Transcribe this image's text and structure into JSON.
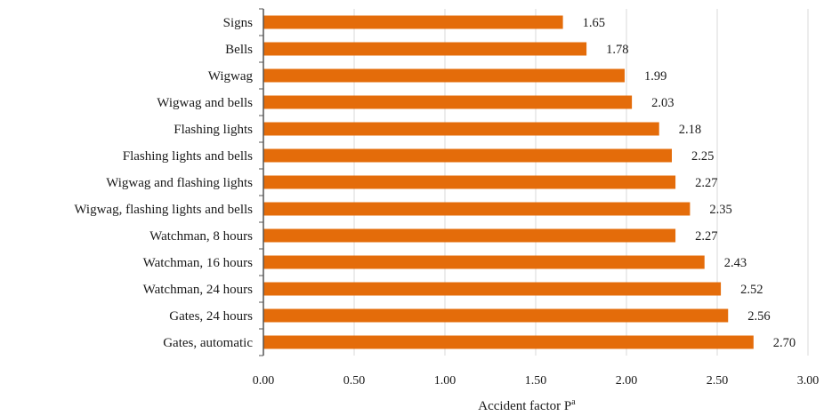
{
  "chart_data": {
    "type": "bar",
    "orientation": "horizontal",
    "categories": [
      "Signs",
      "Bells",
      "Wigwag",
      "Wigwag and bells",
      "Flashing lights",
      "Flashing lights and bells",
      "Wigwag and flashing lights",
      "Wigwag, flashing lights and bells",
      "Watchman, 8 hours",
      "Watchman, 16 hours",
      "Watchman, 24 hours",
      "Gates, 24 hours",
      "Gates, automatic"
    ],
    "values": [
      1.65,
      1.78,
      1.99,
      2.03,
      2.18,
      2.25,
      2.27,
      2.35,
      2.27,
      2.43,
      2.52,
      2.56,
      2.7
    ],
    "value_labels": [
      "1.65",
      "1.78",
      "1.99",
      "2.03",
      "2.18",
      "2.25",
      "2.27",
      "2.35",
      "2.27",
      "2.43",
      "2.52",
      "2.56",
      "2.70"
    ],
    "xlabel": "Accident factor P",
    "xlabel_superscript": "a",
    "ylabel": "",
    "title": "",
    "xlim": [
      0,
      3.0
    ],
    "xticks": [
      "0.00",
      "0.50",
      "1.00",
      "1.50",
      "2.00",
      "2.50",
      "3.00"
    ],
    "grid": "vertical",
    "bar_color": "#E46C0A",
    "grid_color": "#d9d9d9",
    "axis_color": "#555555"
  }
}
